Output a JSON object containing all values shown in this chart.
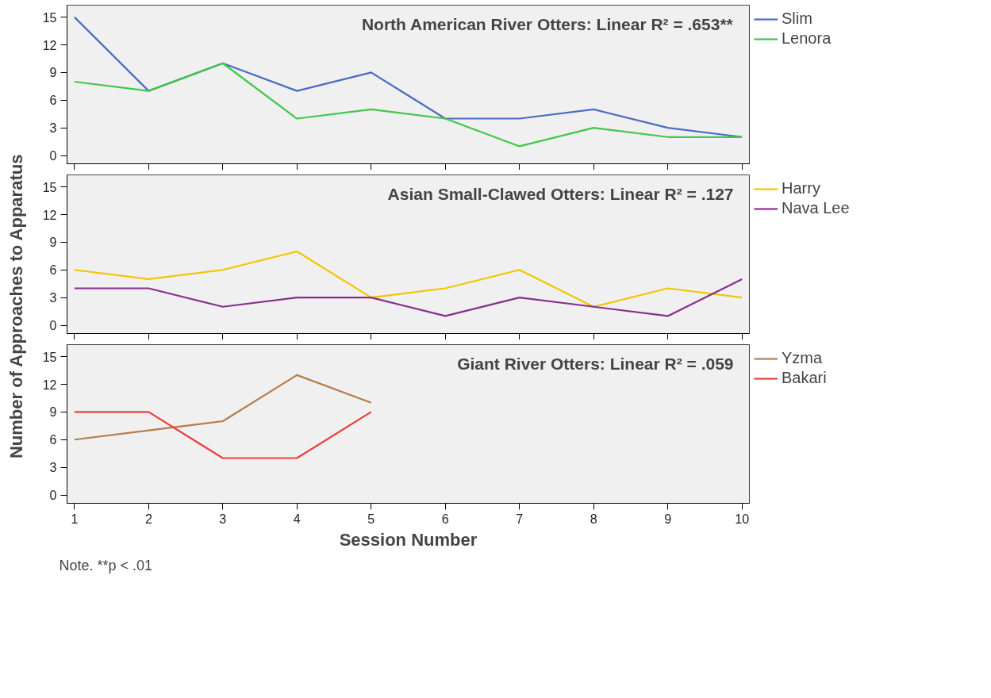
{
  "chart_data": [
    {
      "type": "line",
      "title": "North American River Otters: Linear R² = .653**",
      "x": [
        1,
        2,
        3,
        4,
        5,
        6,
        7,
        8,
        9,
        10
      ],
      "xlim": [
        0.9,
        10.1
      ],
      "xticks": [
        1,
        2,
        3,
        4,
        5,
        6,
        7,
        8,
        9,
        10
      ],
      "ylim": [
        -0.9,
        16.3
      ],
      "yticks": [
        0,
        3,
        6,
        9,
        12,
        15
      ],
      "tick_labels": "y",
      "grid": false,
      "legend": "right",
      "series": [
        {
          "name": "Slim",
          "color": "#4a6cc4",
          "values": [
            15,
            7,
            10,
            7,
            9,
            4,
            4,
            5,
            3,
            2
          ]
        },
        {
          "name": "Lenora",
          "color": "#3fc84a",
          "values": [
            8,
            7,
            10,
            4,
            5,
            4,
            1,
            3,
            2,
            2
          ]
        }
      ]
    },
    {
      "type": "line",
      "title": "Asian Small-Clawed Otters: Linear R² = .127",
      "ylabel": "Number of Approaches to Apparatus",
      "x": [
        1,
        2,
        3,
        4,
        5,
        6,
        7,
        8,
        9,
        10
      ],
      "xlim": [
        0.9,
        10.1
      ],
      "xticks": [
        1,
        2,
        3,
        4,
        5,
        6,
        7,
        8,
        9,
        10
      ],
      "ylim": [
        -0.9,
        16.3
      ],
      "yticks": [
        0,
        3,
        6,
        9,
        12,
        15
      ],
      "tick_labels": "y",
      "grid": false,
      "legend": "right",
      "series": [
        {
          "name": "Harry",
          "color": "#f5c400",
          "values": [
            6,
            5,
            6,
            8,
            3,
            4,
            6,
            2,
            4,
            3
          ]
        },
        {
          "name": "Nava Lee",
          "color": "#8a2e8c",
          "values": [
            4,
            4,
            2,
            3,
            3,
            1,
            3,
            2,
            1,
            5
          ]
        }
      ]
    },
    {
      "type": "line",
      "title": "Giant River Otters: Linear R² = .059",
      "xlabel": "Session Number",
      "x": [
        1,
        2,
        3,
        4,
        5
      ],
      "xlim": [
        0.9,
        10.1
      ],
      "xticks": [
        1,
        2,
        3,
        4,
        5,
        6,
        7,
        8,
        9,
        10
      ],
      "ylim": [
        -0.9,
        16.3
      ],
      "yticks": [
        0,
        3,
        6,
        9,
        12,
        15
      ],
      "grid": false,
      "legend": "right",
      "annotations": [
        "Note. **p < .01"
      ],
      "series": [
        {
          "name": "Yzma",
          "color": "#b87c4a",
          "values": [
            6,
            7,
            8,
            13,
            10
          ]
        },
        {
          "name": "Bakari",
          "color": "#f03c3c",
          "values": [
            9,
            9,
            4,
            4,
            9
          ]
        }
      ]
    }
  ]
}
